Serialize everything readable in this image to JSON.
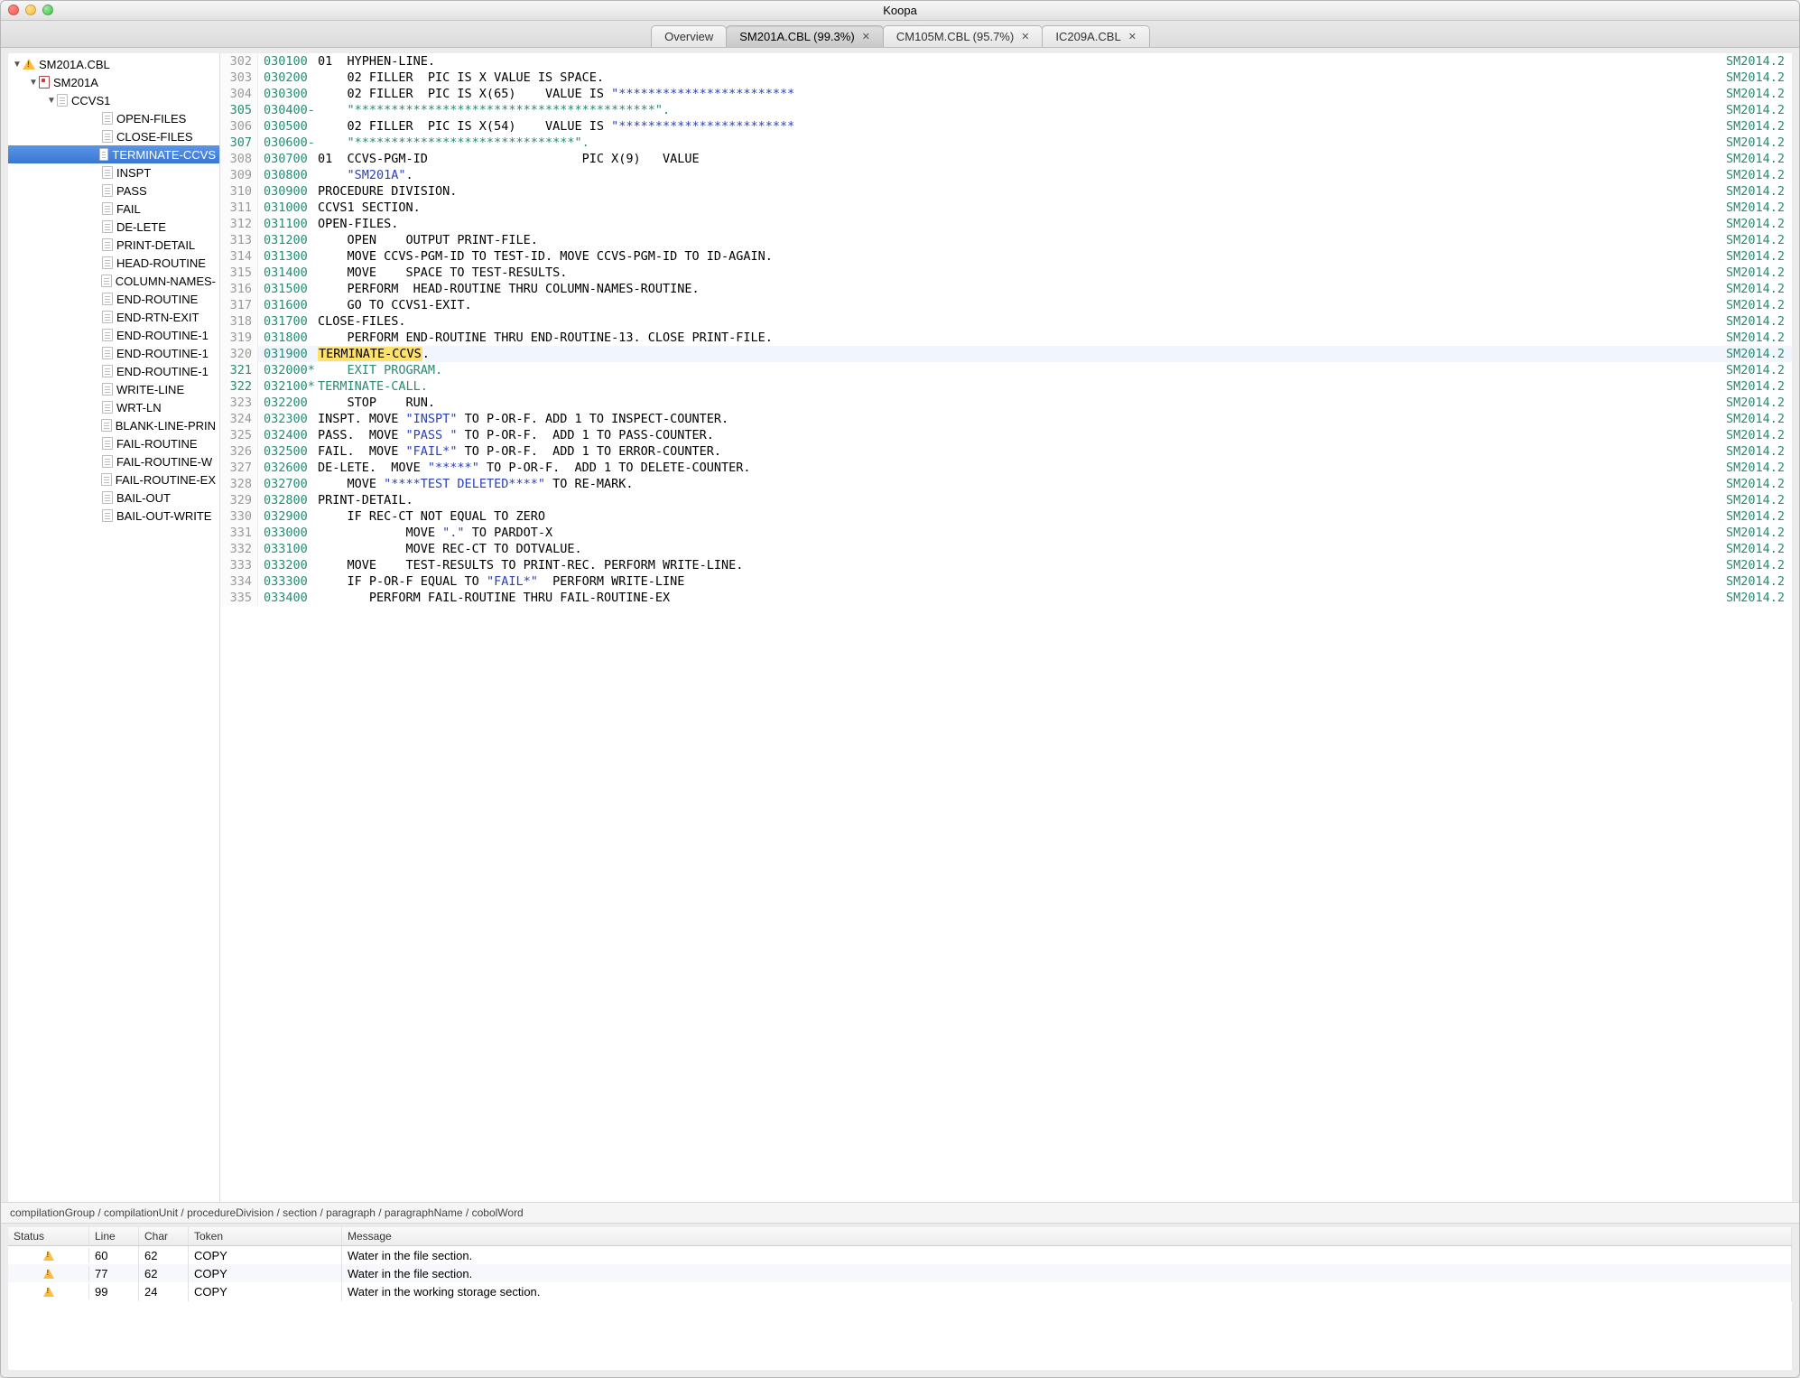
{
  "window": {
    "title": "Koopa"
  },
  "tabs": [
    {
      "label": "Overview",
      "closable": false,
      "active": false
    },
    {
      "label": "SM201A.CBL (99.3%)",
      "closable": true,
      "active": true
    },
    {
      "label": "CM105M.CBL (95.7%)",
      "closable": true,
      "active": false
    },
    {
      "label": "IC209A.CBL",
      "closable": true,
      "active": false
    }
  ],
  "tree": {
    "root": {
      "label": "SM201A.CBL",
      "icon": "warn"
    },
    "prog": {
      "label": "SM201A",
      "icon": "prog"
    },
    "sect": {
      "label": "CCVS1",
      "icon": "doc"
    },
    "items": [
      "OPEN-FILES",
      "CLOSE-FILES",
      "TERMINATE-CCVS",
      "INSPT",
      "PASS",
      "FAIL",
      "DE-LETE",
      "PRINT-DETAIL",
      "HEAD-ROUTINE",
      "COLUMN-NAMES-",
      "END-ROUTINE",
      "END-RTN-EXIT",
      "END-ROUTINE-1",
      "END-ROUTINE-1",
      "END-ROUTINE-1",
      "WRITE-LINE",
      "WRT-LN",
      "BLANK-LINE-PRIN",
      "FAIL-ROUTINE",
      "FAIL-ROUTINE-W",
      "FAIL-ROUTINE-EX",
      "BAIL-OUT",
      "BAIL-OUT-WRITE"
    ],
    "selected_index": 2
  },
  "code": {
    "right_tag": "SM2014.2",
    "highlight_row": 320,
    "lines": [
      {
        "n": 302,
        "seq": "030100",
        "t": [
          [
            "kw",
            "01  HYPHEN-LINE."
          ]
        ]
      },
      {
        "n": 303,
        "seq": "030200",
        "t": [
          [
            "kw",
            "    02 FILLER  PIC IS X VALUE IS SPACE."
          ]
        ]
      },
      {
        "n": 304,
        "seq": "030300",
        "t": [
          [
            "kw",
            "    02 FILLER  PIC IS X(65)    VALUE IS "
          ],
          [
            "str",
            "\"************************"
          ]
        ]
      },
      {
        "n": 305,
        "seq": "030400-",
        "cmt": true,
        "t": [
          [
            "str",
            "    \"*****************************************\""
          ],
          [
            "kw",
            "."
          ]
        ]
      },
      {
        "n": 306,
        "seq": "030500",
        "t": [
          [
            "kw",
            "    02 FILLER  PIC IS X(54)    VALUE IS "
          ],
          [
            "str",
            "\"************************"
          ]
        ]
      },
      {
        "n": 307,
        "seq": "030600-",
        "cmt": true,
        "t": [
          [
            "str",
            "    \"******************************\""
          ],
          [
            "kw",
            "."
          ]
        ]
      },
      {
        "n": 308,
        "seq": "030700",
        "t": [
          [
            "kw",
            "01  CCVS-PGM-ID                     PIC X(9)   VALUE"
          ]
        ]
      },
      {
        "n": 309,
        "seq": "030800",
        "t": [
          [
            "kw",
            "    "
          ],
          [
            "str",
            "\"SM201A\""
          ],
          [
            "kw",
            "."
          ]
        ]
      },
      {
        "n": 310,
        "seq": "030900",
        "t": [
          [
            "kw",
            "PROCEDURE DIVISION."
          ]
        ]
      },
      {
        "n": 311,
        "seq": "031000",
        "t": [
          [
            "kw",
            "CCVS1 SECTION."
          ]
        ]
      },
      {
        "n": 312,
        "seq": "031100",
        "t": [
          [
            "kw",
            "OPEN-FILES."
          ]
        ]
      },
      {
        "n": 313,
        "seq": "031200",
        "t": [
          [
            "kw",
            "    OPEN    OUTPUT PRINT-FILE."
          ]
        ]
      },
      {
        "n": 314,
        "seq": "031300",
        "t": [
          [
            "kw",
            "    MOVE CCVS-PGM-ID TO TEST-ID. MOVE CCVS-PGM-ID TO ID-AGAIN."
          ]
        ]
      },
      {
        "n": 315,
        "seq": "031400",
        "t": [
          [
            "kw",
            "    MOVE    SPACE TO TEST-RESULTS."
          ]
        ]
      },
      {
        "n": 316,
        "seq": "031500",
        "t": [
          [
            "kw",
            "    PERFORM  HEAD-ROUTINE THRU COLUMN-NAMES-ROUTINE."
          ]
        ]
      },
      {
        "n": 317,
        "seq": "031600",
        "t": [
          [
            "kw",
            "    GO TO CCVS1-EXIT."
          ]
        ]
      },
      {
        "n": 318,
        "seq": "031700",
        "t": [
          [
            "kw",
            "CLOSE-FILES."
          ]
        ]
      },
      {
        "n": 319,
        "seq": "031800",
        "t": [
          [
            "kw",
            "    PERFORM END-ROUTINE THRU END-ROUTINE-13. CLOSE PRINT-FILE."
          ]
        ]
      },
      {
        "n": 320,
        "seq": "031900",
        "t": [
          [
            "hi",
            "TERMINATE-CCVS"
          ],
          [
            "kw",
            "."
          ]
        ]
      },
      {
        "n": 321,
        "seq": "032000*",
        "cmt": true,
        "t": [
          [
            "kw",
            "    EXIT PROGRAM."
          ]
        ]
      },
      {
        "n": 322,
        "seq": "032100*",
        "cmt": true,
        "t": [
          [
            "kw",
            "TERMINATE-CALL."
          ]
        ]
      },
      {
        "n": 323,
        "seq": "032200",
        "t": [
          [
            "kw",
            "    STOP    RUN."
          ]
        ]
      },
      {
        "n": 324,
        "seq": "032300",
        "t": [
          [
            "kw",
            "INSPT. MOVE "
          ],
          [
            "str",
            "\"INSPT\""
          ],
          [
            "kw",
            " TO P-OR-F. ADD 1 TO INSPECT-COUNTER."
          ]
        ]
      },
      {
        "n": 325,
        "seq": "032400",
        "t": [
          [
            "kw",
            "PASS.  MOVE "
          ],
          [
            "str",
            "\"PASS \""
          ],
          [
            "kw",
            " TO P-OR-F.  ADD 1 TO PASS-COUNTER."
          ]
        ]
      },
      {
        "n": 326,
        "seq": "032500",
        "t": [
          [
            "kw",
            "FAIL.  MOVE "
          ],
          [
            "str",
            "\"FAIL*\""
          ],
          [
            "kw",
            " TO P-OR-F.  ADD 1 TO ERROR-COUNTER."
          ]
        ]
      },
      {
        "n": 327,
        "seq": "032600",
        "t": [
          [
            "kw",
            "DE-LETE.  MOVE "
          ],
          [
            "str",
            "\"*****\""
          ],
          [
            "kw",
            " TO P-OR-F.  ADD 1 TO DELETE-COUNTER."
          ]
        ]
      },
      {
        "n": 328,
        "seq": "032700",
        "t": [
          [
            "kw",
            "    MOVE "
          ],
          [
            "str",
            "\"****TEST DELETED****\""
          ],
          [
            "kw",
            " TO RE-MARK."
          ]
        ]
      },
      {
        "n": 329,
        "seq": "032800",
        "t": [
          [
            "kw",
            "PRINT-DETAIL."
          ]
        ]
      },
      {
        "n": 330,
        "seq": "032900",
        "t": [
          [
            "kw",
            "    IF REC-CT NOT EQUAL TO ZERO"
          ]
        ]
      },
      {
        "n": 331,
        "seq": "033000",
        "t": [
          [
            "kw",
            "            MOVE "
          ],
          [
            "str",
            "\".\""
          ],
          [
            "kw",
            " TO PARDOT-X"
          ]
        ]
      },
      {
        "n": 332,
        "seq": "033100",
        "t": [
          [
            "kw",
            "            MOVE REC-CT TO DOTVALUE."
          ]
        ]
      },
      {
        "n": 333,
        "seq": "033200",
        "t": [
          [
            "kw",
            "    MOVE    TEST-RESULTS TO PRINT-REC. PERFORM WRITE-LINE."
          ]
        ]
      },
      {
        "n": 334,
        "seq": "033300",
        "t": [
          [
            "kw",
            "    IF P-OR-F EQUAL TO "
          ],
          [
            "str",
            "\"FAIL*\""
          ],
          [
            "kw",
            "  PERFORM WRITE-LINE"
          ]
        ]
      },
      {
        "n": 335,
        "seq": "033400",
        "t": [
          [
            "kw",
            "       PERFORM FAIL-ROUTINE THRU FAIL-ROUTINE-EX"
          ]
        ]
      }
    ]
  },
  "breadcrumb": "compilationGroup / compilationUnit / procedureDivision / section / paragraph / paragraphName / cobolWord",
  "problems": {
    "headers": {
      "status": "Status",
      "line": "Line",
      "char": "Char",
      "token": "Token",
      "message": "Message"
    },
    "rows": [
      {
        "line": "60",
        "char": "62",
        "token": "COPY",
        "message": "Water in the file section."
      },
      {
        "line": "77",
        "char": "62",
        "token": "COPY",
        "message": "Water in the file section."
      },
      {
        "line": "99",
        "char": "24",
        "token": "COPY",
        "message": "Water in the working storage section."
      }
    ]
  }
}
